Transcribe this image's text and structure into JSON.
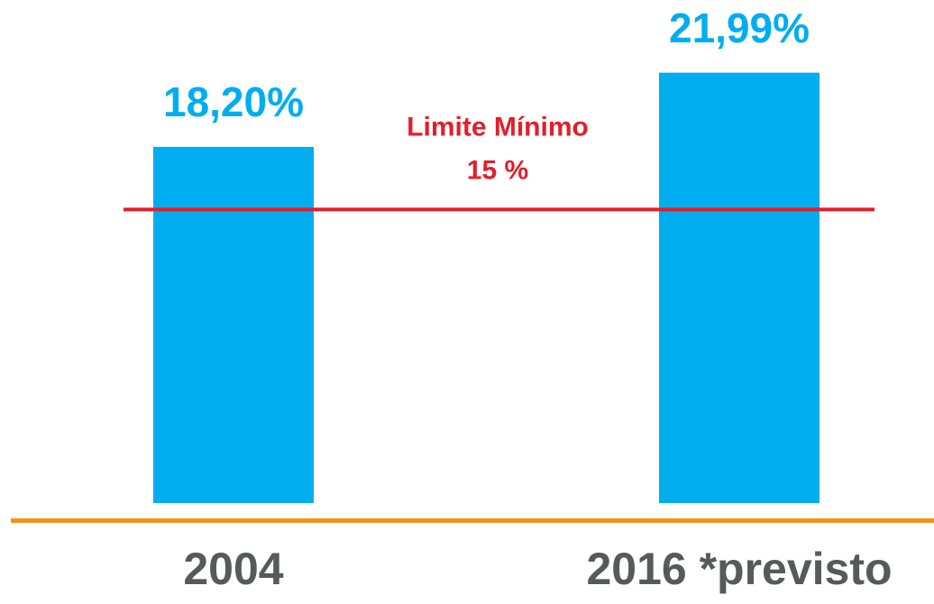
{
  "chart_data": {
    "type": "bar",
    "categories": [
      "2004",
      "2016 *previsto"
    ],
    "values": [
      18.2,
      21.99
    ],
    "value_labels": [
      "18,20%",
      "21,99%"
    ],
    "color": "#00adef",
    "ylim": [
      0,
      24
    ],
    "reference_line": {
      "value": 15,
      "label": "Limite Mínimo",
      "value_label": "15 %",
      "color": "#e31e2b"
    }
  }
}
